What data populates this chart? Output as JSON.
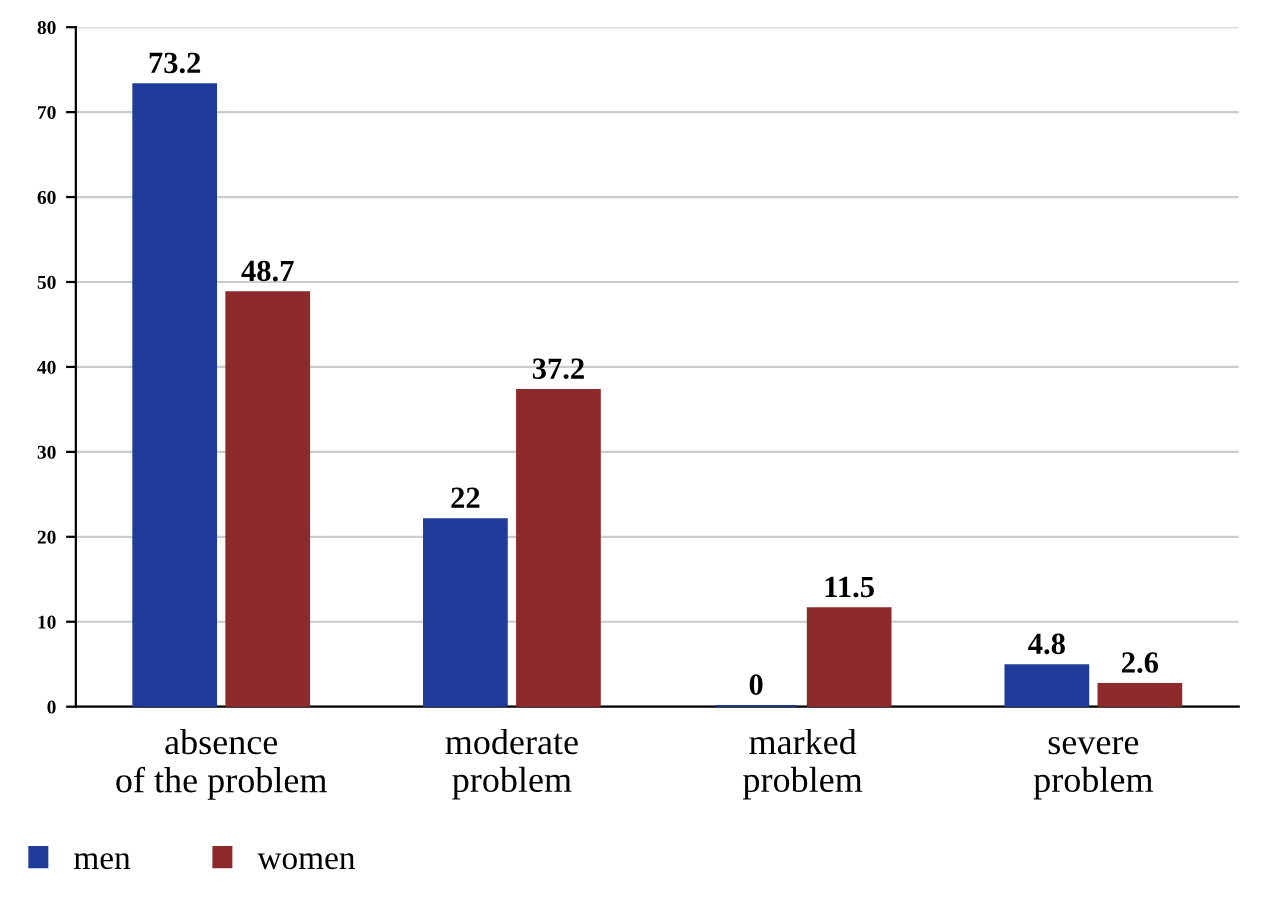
{
  "chart_data": {
    "type": "bar",
    "categories": [
      "absence\nof the problem",
      "moderate\nproblem",
      "marked\nproblem",
      "severe\nproblem"
    ],
    "series": [
      {
        "name": "men",
        "color": "#1f3c9a",
        "values": [
          73.2,
          22,
          0,
          4.8
        ]
      },
      {
        "name": "women",
        "color": "#8c2a2c",
        "values": [
          48.7,
          37.2,
          11.5,
          2.6
        ]
      }
    ],
    "ylim": [
      0,
      80
    ],
    "yticks": [
      0,
      10,
      20,
      30,
      40,
      50,
      60,
      70,
      80
    ],
    "grid": "y",
    "data_labels": true,
    "legend": "bottom left"
  }
}
